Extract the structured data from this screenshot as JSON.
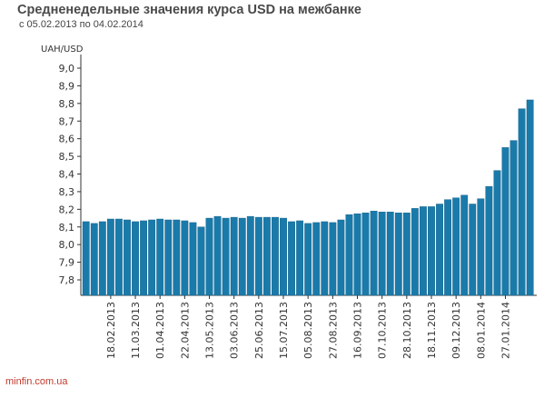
{
  "header": {
    "title": "Средненедельные значения курса USD на межбанке",
    "subtitle": "с 05.02.2013 по 04.02.2014"
  },
  "footer": {
    "source": "minfin.com.ua"
  },
  "colors": {
    "bar": "#1a7bab",
    "bar_edge": "#0f5a80",
    "axis": "#333333"
  },
  "chart_data": {
    "type": "bar",
    "title": "Средненедельные значения курса USD на межбанке",
    "subtitle": "с 05.02.2013 по 04.02.2014",
    "ylabel": "UAH/USD",
    "xlabel": "",
    "ylim": [
      7.7,
      9.0
    ],
    "yticks": [
      "9,0",
      "8,9",
      "8,8",
      "8,7",
      "8,6",
      "8,5",
      "8,4",
      "8,3",
      "8,2",
      "8,1",
      "8,0",
      "7,9",
      "7,8"
    ],
    "grid": false,
    "legend": "none",
    "xtick_labels": [
      "18.02.2013",
      "11.03.2013",
      "01.04.2013",
      "22.04.2013",
      "13.05.2013",
      "03.06.2013",
      "25.06.2013",
      "15.07.2013",
      "05.08.2013",
      "27.08.2013",
      "16.09.2013",
      "07.10.2013",
      "28.10.2013",
      "18.11.2013",
      "09.12.2013",
      "08.01.2014",
      "27.01.2014"
    ],
    "xtick_bar_index": [
      3,
      6,
      9,
      12,
      15,
      18,
      21,
      24,
      27,
      30,
      33,
      36,
      39,
      42,
      45,
      48,
      51
    ],
    "values": [
      8.13,
      8.12,
      8.13,
      8.145,
      8.145,
      8.14,
      8.13,
      8.135,
      8.14,
      8.145,
      8.14,
      8.14,
      8.135,
      8.125,
      8.1,
      8.15,
      8.16,
      8.15,
      8.155,
      8.15,
      8.16,
      8.155,
      8.155,
      8.155,
      8.15,
      8.13,
      8.135,
      8.12,
      8.125,
      8.13,
      8.125,
      8.14,
      8.17,
      8.175,
      8.18,
      8.19,
      8.185,
      8.185,
      8.18,
      8.18,
      8.205,
      8.215,
      8.215,
      8.23,
      8.255,
      8.265,
      8.28,
      8.23,
      8.26,
      8.33,
      8.42,
      8.55,
      8.59,
      8.77,
      8.82
    ]
  }
}
